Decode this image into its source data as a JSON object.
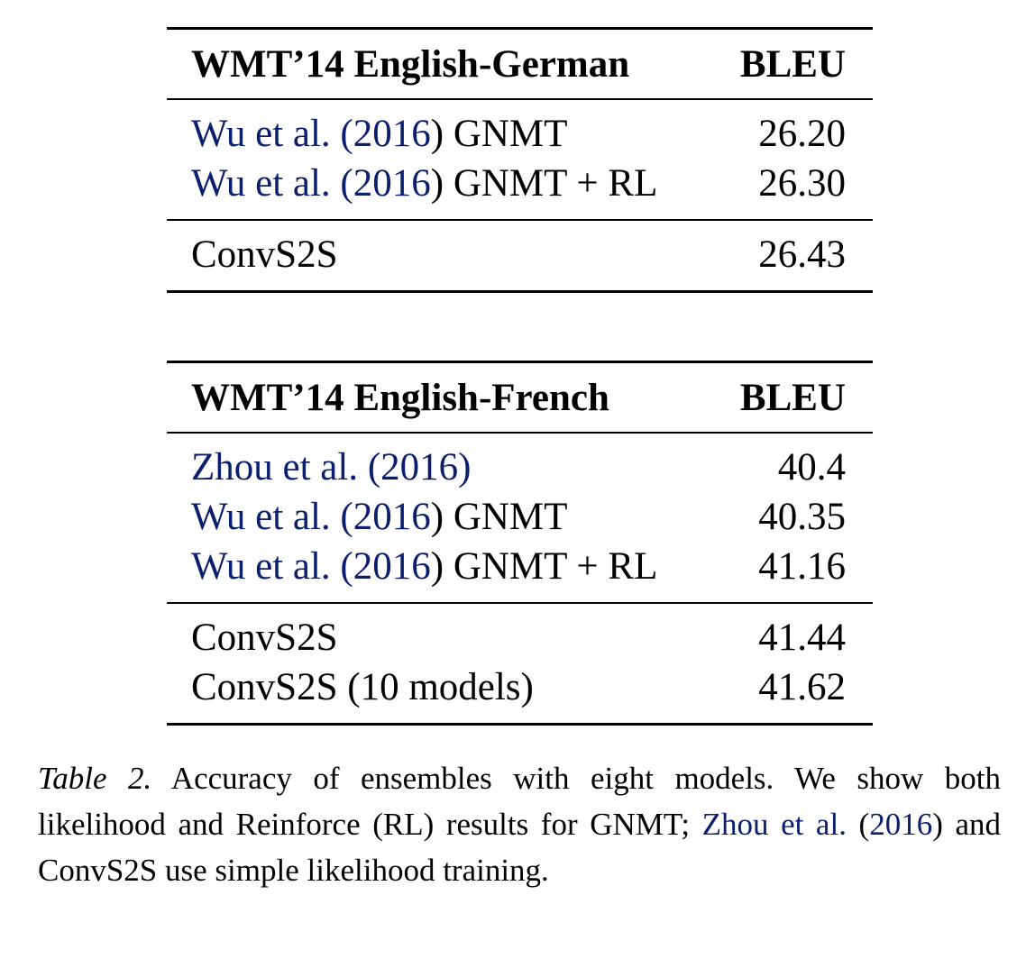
{
  "tables": [
    {
      "header": {
        "dataset": "WMT’14 English-German",
        "metric": "BLEU"
      },
      "baselines": [
        {
          "cite_author": "Wu et al. (",
          "cite_year": "2016",
          "cite_close": ")",
          "suffix": " GNMT",
          "value": "26.20"
        },
        {
          "cite_author": "Wu et al. (",
          "cite_year": "2016",
          "cite_close": ")",
          "suffix": " GNMT + RL",
          "value": "26.30"
        }
      ],
      "ours": [
        {
          "model": "ConvS2S",
          "value": "26.43"
        }
      ]
    },
    {
      "header": {
        "dataset": "WMT’14 English-French",
        "metric": "BLEU"
      },
      "baselines": [
        {
          "cite_author": "Zhou et al. (",
          "cite_year": "2016",
          "cite_close": ")",
          "suffix": "",
          "value": "40.4"
        },
        {
          "cite_author": "Wu et al. (",
          "cite_year": "2016",
          "cite_close": ")",
          "suffix": " GNMT",
          "value": "40.35"
        },
        {
          "cite_author": "Wu et al. (",
          "cite_year": "2016",
          "cite_close": ")",
          "suffix": " GNMT + RL",
          "value": "41.16"
        }
      ],
      "ours": [
        {
          "model": "ConvS2S",
          "value": "41.44"
        },
        {
          "model": "ConvS2S (10 models)",
          "value": "41.62"
        }
      ]
    }
  ],
  "caption": {
    "label": "Table 2.",
    "text1": " Accuracy of ensembles with eight models.  We show both likelihood and Reinforce (RL) results for GNMT; ",
    "cite_author": "Zhou et al.",
    "text2": " (",
    "cite_year": "2016",
    "text3": ") and ConvS2S use simple likelihood training."
  },
  "colors": {
    "citation": "#0b1f6e",
    "text": "#000000"
  }
}
